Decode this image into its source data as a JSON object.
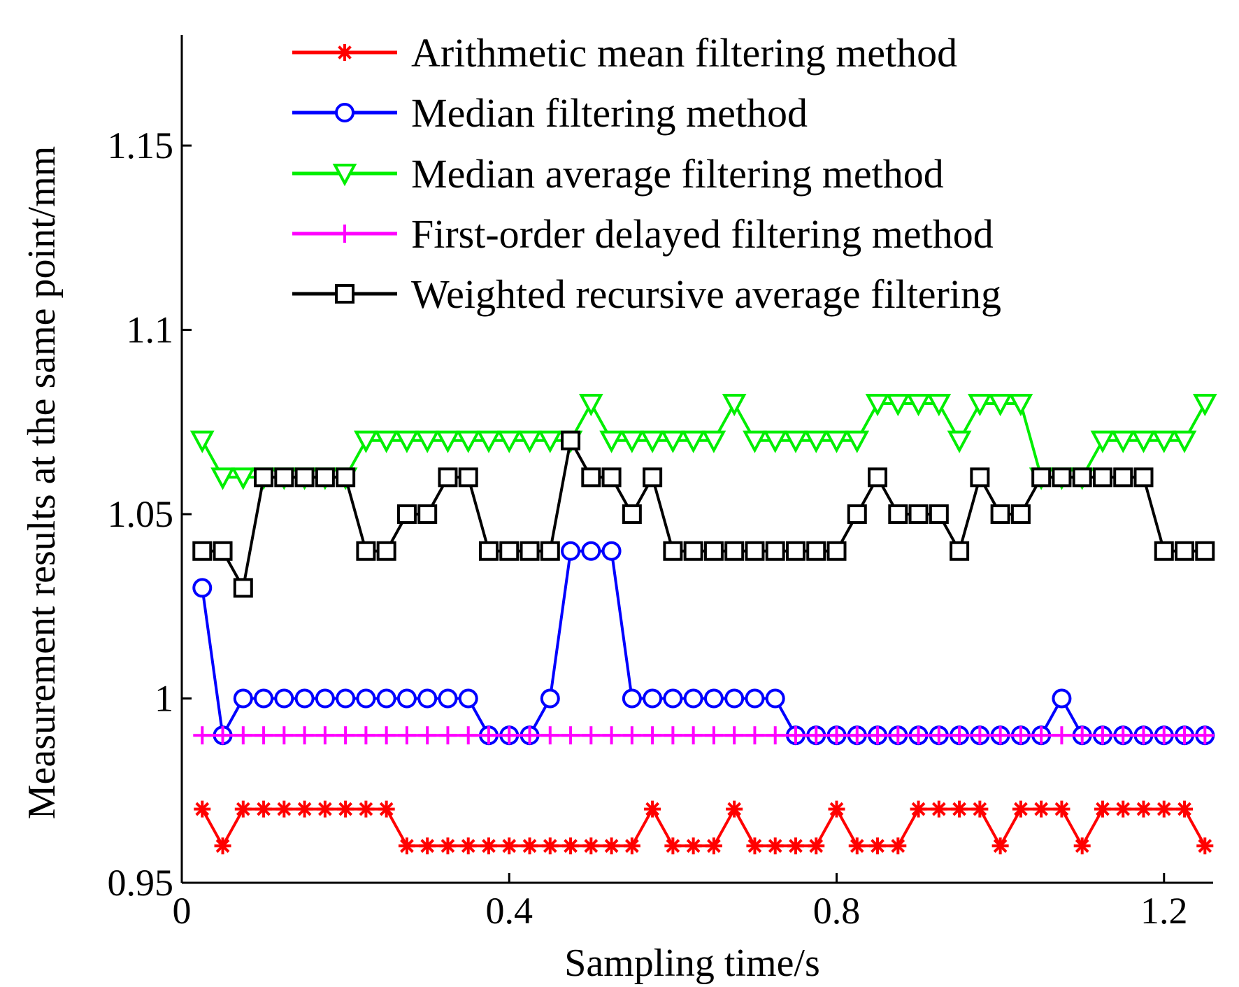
{
  "chart_data": {
    "type": "line",
    "xlabel": "Sampling time/s",
    "ylabel": "Measurement results at the same point/mm",
    "xlim": [
      0,
      1.26
    ],
    "ylim": [
      0.95,
      1.18
    ],
    "x_ticks": [
      0,
      0.4,
      0.8,
      1.2
    ],
    "x_tick_labels": [
      "0",
      "0.4",
      "0.8",
      "1.2"
    ],
    "y_ticks": [
      0.95,
      1.0,
      1.05,
      1.1,
      1.15
    ],
    "y_tick_labels": [
      "0.95",
      "1",
      "1.05",
      "1.1",
      "1.15"
    ],
    "grid": false,
    "legend_position": "top",
    "x": [
      0.025,
      0.05,
      0.075,
      0.1,
      0.125,
      0.15,
      0.175,
      0.2,
      0.225,
      0.25,
      0.275,
      0.3,
      0.325,
      0.35,
      0.375,
      0.4,
      0.425,
      0.45,
      0.475,
      0.5,
      0.525,
      0.55,
      0.575,
      0.6,
      0.625,
      0.65,
      0.675,
      0.7,
      0.725,
      0.75,
      0.775,
      0.8,
      0.825,
      0.85,
      0.875,
      0.9,
      0.925,
      0.95,
      0.975,
      1.0,
      1.025,
      1.05,
      1.075,
      1.1,
      1.125,
      1.15,
      1.175,
      1.2,
      1.225,
      1.25
    ],
    "series": [
      {
        "name": "Arithmetic mean filtering method",
        "color": "#ff0000",
        "marker": "asterisk",
        "values": [
          0.97,
          0.96,
          0.97,
          0.97,
          0.97,
          0.97,
          0.97,
          0.97,
          0.97,
          0.97,
          0.96,
          0.96,
          0.96,
          0.96,
          0.96,
          0.96,
          0.96,
          0.96,
          0.96,
          0.96,
          0.96,
          0.96,
          0.97,
          0.96,
          0.96,
          0.96,
          0.97,
          0.96,
          0.96,
          0.96,
          0.96,
          0.97,
          0.96,
          0.96,
          0.96,
          0.97,
          0.97,
          0.97,
          0.97,
          0.96,
          0.97,
          0.97,
          0.97,
          0.96,
          0.97,
          0.97,
          0.97,
          0.97,
          0.97,
          0.96
        ]
      },
      {
        "name": "Median filtering method",
        "color": "#0000ff",
        "marker": "circle",
        "values": [
          1.03,
          0.99,
          1.0,
          1.0,
          1.0,
          1.0,
          1.0,
          1.0,
          1.0,
          1.0,
          1.0,
          1.0,
          1.0,
          1.0,
          0.99,
          0.99,
          0.99,
          1.0,
          1.04,
          1.04,
          1.04,
          1.0,
          1.0,
          1.0,
          1.0,
          1.0,
          1.0,
          1.0,
          1.0,
          0.99,
          0.99,
          0.99,
          0.99,
          0.99,
          0.99,
          0.99,
          0.99,
          0.99,
          0.99,
          0.99,
          0.99,
          0.99,
          1.0,
          0.99,
          0.99,
          0.99,
          0.99,
          0.99,
          0.99,
          0.99
        ]
      },
      {
        "name": "Median average filtering method",
        "color": "#00ee00",
        "marker": "triangle-down",
        "values": [
          1.07,
          1.06,
          1.06,
          1.06,
          1.06,
          1.06,
          1.06,
          1.06,
          1.07,
          1.07,
          1.07,
          1.07,
          1.07,
          1.07,
          1.07,
          1.07,
          1.07,
          1.07,
          1.07,
          1.08,
          1.07,
          1.07,
          1.07,
          1.07,
          1.07,
          1.07,
          1.08,
          1.07,
          1.07,
          1.07,
          1.07,
          1.07,
          1.07,
          1.08,
          1.08,
          1.08,
          1.08,
          1.07,
          1.08,
          1.08,
          1.08,
          1.06,
          1.06,
          1.06,
          1.07,
          1.07,
          1.07,
          1.07,
          1.07,
          1.08
        ]
      },
      {
        "name": "First-order delayed filtering method",
        "color": "#ff00ff",
        "marker": "plus",
        "values": [
          0.99,
          0.99,
          0.99,
          0.99,
          0.99,
          0.99,
          0.99,
          0.99,
          0.99,
          0.99,
          0.99,
          0.99,
          0.99,
          0.99,
          0.99,
          0.99,
          0.99,
          0.99,
          0.99,
          0.99,
          0.99,
          0.99,
          0.99,
          0.99,
          0.99,
          0.99,
          0.99,
          0.99,
          0.99,
          0.99,
          0.99,
          0.99,
          0.99,
          0.99,
          0.99,
          0.99,
          0.99,
          0.99,
          0.99,
          0.99,
          0.99,
          0.99,
          0.99,
          0.99,
          0.99,
          0.99,
          0.99,
          0.99,
          0.99,
          0.99
        ]
      },
      {
        "name": "Weighted recursive average filtering",
        "color": "#000000",
        "marker": "square",
        "values": [
          1.04,
          1.04,
          1.03,
          1.06,
          1.06,
          1.06,
          1.06,
          1.06,
          1.04,
          1.04,
          1.05,
          1.05,
          1.06,
          1.06,
          1.04,
          1.04,
          1.04,
          1.04,
          1.07,
          1.06,
          1.06,
          1.05,
          1.06,
          1.04,
          1.04,
          1.04,
          1.04,
          1.04,
          1.04,
          1.04,
          1.04,
          1.04,
          1.05,
          1.06,
          1.05,
          1.05,
          1.05,
          1.04,
          1.06,
          1.05,
          1.05,
          1.06,
          1.06,
          1.06,
          1.06,
          1.06,
          1.06,
          1.04,
          1.04,
          1.04
        ]
      }
    ]
  }
}
